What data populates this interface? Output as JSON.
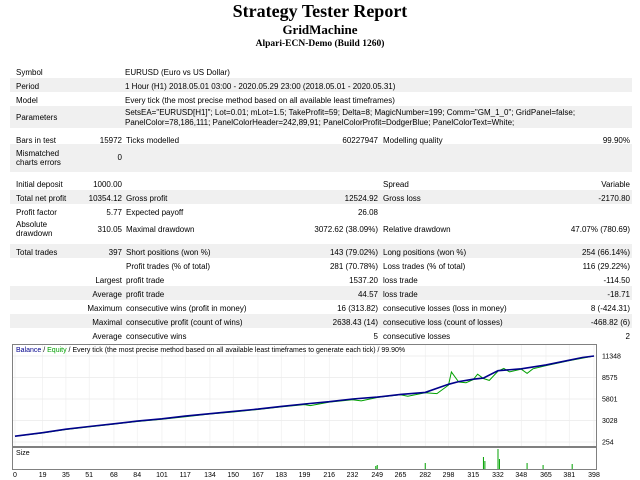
{
  "report": {
    "title": "Strategy Tester Report",
    "ea_name": "GridMachine",
    "server": "Alpari-ECN-Demo (Build 1260)"
  },
  "info": [
    {
      "label": "Symbol",
      "value": "EURUSD (Euro vs US Dollar)"
    },
    {
      "label": "Period",
      "value": "1 Hour (H1) 2018.05.01 03:00 - 2020.05.29 23:00 (2018.05.01 - 2020.05.31)"
    },
    {
      "label": "Model",
      "value": "Every tick (the most precise method based on all available least timeframes)"
    },
    {
      "label": "Parameters",
      "value1": "SetsEA=\"EURUSD[H1]\"; Lot=0.01; mLot=1.5; TakeProfit=59; Delta=8; MagicNumber=199; Comm=\"GM_1_0\"; GridPanel=false;",
      "value2": "PanelColor=78,186,111; PanelColorHeader=242,89,91; PanelColorProfit=DodgerBlue; PanelColorText=White;"
    }
  ],
  "stats": {
    "bars_label": "Bars in test",
    "bars": "15972",
    "ticks_label": "Ticks modelled",
    "ticks": "60227947",
    "quality_label": "Modelling quality",
    "quality": "99.90%",
    "mismatch_label1": "Mismatched",
    "mismatch_label2": "charts errors",
    "mismatch": "0",
    "deposit_label": "Initial deposit",
    "deposit": "1000.00",
    "spread_label": "Spread",
    "spread": "Variable",
    "net_label": "Total net profit",
    "net": "10354.12",
    "gross_profit_label": "Gross profit",
    "gross_profit": "12524.92",
    "gross_loss_label": "Gross loss",
    "gross_loss": "-2170.80",
    "pf_label": "Profit factor",
    "pf": "5.77",
    "payoff_label": "Expected payoff",
    "payoff": "26.08",
    "absdd_label1": "Absolute",
    "absdd_label2": "drawdown",
    "absdd": "310.05",
    "maxdd_label": "Maximal drawdown",
    "maxdd": "3072.62 (38.09%)",
    "reldd_label": "Relative drawdown",
    "reldd": "47.07% (780.69)",
    "trades_label": "Total trades",
    "trades": "397",
    "short_label": "Short positions (won %)",
    "short": "143 (79.02%)",
    "long_label": "Long positions (won %)",
    "long": "254 (66.14%)",
    "ptrades_label": "Profit trades (% of total)",
    "ptrades": "281 (70.78%)",
    "ltrades_label": "Loss trades (% of total)",
    "ltrades": "116 (29.22%)",
    "largest_label": "Largest",
    "lg_profit_label": "profit trade",
    "lg_profit": "1537.20",
    "lg_loss_label": "loss trade",
    "lg_loss": "-114.50",
    "average_label": "Average",
    "av_profit_label": "profit trade",
    "av_profit": "44.57",
    "av_loss_label": "loss trade",
    "av_loss": "-18.71",
    "maximum_label": "Maximum",
    "mx_wins_label": "consecutive wins (profit in money)",
    "mx_wins": "16 (313.82)",
    "mx_losses_label": "consecutive losses (loss in money)",
    "mx_losses": "8 (-424.31)",
    "maximal_label": "Maximal",
    "ml_profit_label": "consecutive profit (count of wins)",
    "ml_profit": "2638.43 (14)",
    "ml_loss_label": "consecutive loss (count of losses)",
    "ml_loss": "-468.82 (6)",
    "avg2_label": "Average",
    "ac_wins_label": "consecutive wins",
    "ac_wins": "5",
    "ac_losses_label": "consecutive losses",
    "ac_losses": "2"
  },
  "chart_data": {
    "type": "line",
    "legend_balance": "Balance",
    "legend_sep": " / ",
    "legend_equity": "Equity",
    "legend_rest": " / Every tick (the most precise method based on all available least timeframes to generate each tick) / 99.90%",
    "size_label": "Size",
    "ylim": [
      254,
      11348
    ],
    "y_ticks": [
      "11348",
      "8575",
      "5801",
      "3028",
      "254"
    ],
    "x_ticks": [
      "0",
      "19",
      "35",
      "51",
      "68",
      "84",
      "101",
      "117",
      "134",
      "150",
      "167",
      "183",
      "199",
      "216",
      "232",
      "249",
      "265",
      "282",
      "298",
      "315",
      "332",
      "348",
      "365",
      "381",
      "398"
    ],
    "x_range": [
      0,
      398
    ],
    "balance_color": "#00008b",
    "equity_color": "#00a000",
    "size_color": "#00a000",
    "balance": [
      [
        0,
        1000
      ],
      [
        19,
        1450
      ],
      [
        35,
        1900
      ],
      [
        51,
        2250
      ],
      [
        68,
        2600
      ],
      [
        84,
        2950
      ],
      [
        101,
        3250
      ],
      [
        117,
        3600
      ],
      [
        134,
        3900
      ],
      [
        150,
        4200
      ],
      [
        167,
        4500
      ],
      [
        183,
        4850
      ],
      [
        199,
        5150
      ],
      [
        216,
        5450
      ],
      [
        232,
        5800
      ],
      [
        249,
        6050
      ],
      [
        265,
        6400
      ],
      [
        282,
        6650
      ],
      [
        298,
        7700
      ],
      [
        305,
        8050
      ],
      [
        315,
        8350
      ],
      [
        322,
        8500
      ],
      [
        332,
        9450
      ],
      [
        348,
        9700
      ],
      [
        365,
        10200
      ],
      [
        381,
        10800
      ],
      [
        390,
        11150
      ],
      [
        398,
        11348
      ]
    ],
    "equity": [
      [
        0,
        1000
      ],
      [
        19,
        1420
      ],
      [
        35,
        1870
      ],
      [
        51,
        2200
      ],
      [
        68,
        2560
      ],
      [
        84,
        2900
      ],
      [
        101,
        3200
      ],
      [
        117,
        3520
      ],
      [
        134,
        3860
      ],
      [
        150,
        4120
      ],
      [
        167,
        4450
      ],
      [
        183,
        4780
      ],
      [
        199,
        5080
      ],
      [
        203,
        4950
      ],
      [
        216,
        5400
      ],
      [
        232,
        5700
      ],
      [
        238,
        5550
      ],
      [
        249,
        6000
      ],
      [
        265,
        6350
      ],
      [
        270,
        6150
      ],
      [
        282,
        6600
      ],
      [
        290,
        6500
      ],
      [
        298,
        7600
      ],
      [
        300,
        9300
      ],
      [
        305,
        8000
      ],
      [
        310,
        7900
      ],
      [
        315,
        8300
      ],
      [
        318,
        9000
      ],
      [
        322,
        8450
      ],
      [
        326,
        8200
      ],
      [
        332,
        9400
      ],
      [
        336,
        9750
      ],
      [
        340,
        9300
      ],
      [
        348,
        9650
      ],
      [
        352,
        9100
      ],
      [
        356,
        9700
      ],
      [
        365,
        10100
      ],
      [
        381,
        10750
      ],
      [
        398,
        11348
      ]
    ],
    "size_bars": [
      [
        248,
        0.15
      ],
      [
        249,
        0.2
      ],
      [
        282,
        0.3
      ],
      [
        322,
        0.6
      ],
      [
        323,
        0.4
      ],
      [
        332,
        1.0
      ],
      [
        333,
        0.5
      ],
      [
        352,
        0.3
      ],
      [
        363,
        0.2
      ],
      [
        383,
        0.25
      ]
    ]
  }
}
